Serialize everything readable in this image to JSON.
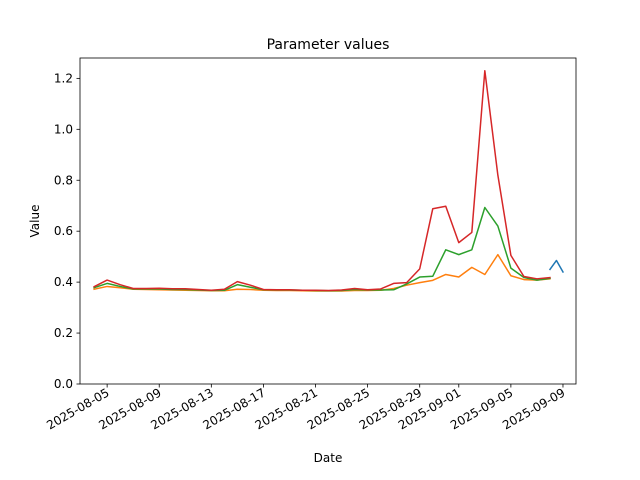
{
  "chart_data": {
    "type": "line",
    "title": "Parameter values",
    "xlabel": "Date",
    "ylabel": "Value",
    "xlim": [
      "2025-08-02T22:00",
      "2025-09-10T00:00"
    ],
    "ylim": [
      0,
      1.28
    ],
    "grid": false,
    "legend": "none",
    "x_ticks": [
      "2025-08-05",
      "2025-08-09",
      "2025-08-13",
      "2025-08-17",
      "2025-08-21",
      "2025-08-25",
      "2025-08-29",
      "2025-09-01",
      "2025-09-05",
      "2025-09-09"
    ],
    "y_ticks": [
      0.0,
      0.2,
      0.4,
      0.6,
      0.8,
      1.0,
      1.2
    ],
    "y_tick_labels": [
      "0.0",
      "0.2",
      "0.4",
      "0.6",
      "0.8",
      "1.0",
      "1.2"
    ],
    "series": [
      {
        "color": "#1f77b4",
        "points": [
          [
            "2025-09-08",
            0.45
          ],
          [
            "2025-09-08T12:00",
            0.485
          ],
          [
            "2025-09-09",
            0.44
          ]
        ]
      },
      {
        "color": "#ff7f0e",
        "points": [
          [
            "2025-08-04",
            0.372
          ],
          [
            "2025-08-05",
            0.383
          ],
          [
            "2025-08-06",
            0.378
          ],
          [
            "2025-08-07",
            0.372
          ],
          [
            "2025-08-08",
            0.371
          ],
          [
            "2025-08-09",
            0.37
          ],
          [
            "2025-08-10",
            0.369
          ],
          [
            "2025-08-11",
            0.368
          ],
          [
            "2025-08-12",
            0.367
          ],
          [
            "2025-08-13",
            0.366
          ],
          [
            "2025-08-14",
            0.366
          ],
          [
            "2025-08-15",
            0.372
          ],
          [
            "2025-08-16",
            0.371
          ],
          [
            "2025-08-17",
            0.368
          ],
          [
            "2025-08-18",
            0.367
          ],
          [
            "2025-08-19",
            0.367
          ],
          [
            "2025-08-20",
            0.366
          ],
          [
            "2025-08-21",
            0.365
          ],
          [
            "2025-08-22",
            0.365
          ],
          [
            "2025-08-23",
            0.365
          ],
          [
            "2025-08-24",
            0.367
          ],
          [
            "2025-08-25",
            0.367
          ],
          [
            "2025-08-26",
            0.368
          ],
          [
            "2025-08-27",
            0.375
          ],
          [
            "2025-08-28",
            0.388
          ],
          [
            "2025-08-29",
            0.398
          ],
          [
            "2025-08-30",
            0.407
          ],
          [
            "2025-08-31",
            0.43
          ],
          [
            "2025-09-01",
            0.42
          ],
          [
            "2025-09-02",
            0.458
          ],
          [
            "2025-09-03",
            0.43
          ],
          [
            "2025-09-04",
            0.508
          ],
          [
            "2025-09-05",
            0.425
          ],
          [
            "2025-09-06",
            0.41
          ],
          [
            "2025-09-07",
            0.408
          ],
          [
            "2025-09-08",
            0.413
          ]
        ]
      },
      {
        "color": "#2ca02c",
        "points": [
          [
            "2025-08-04",
            0.378
          ],
          [
            "2025-08-05",
            0.395
          ],
          [
            "2025-08-06",
            0.383
          ],
          [
            "2025-08-07",
            0.373
          ],
          [
            "2025-08-08",
            0.373
          ],
          [
            "2025-08-09",
            0.373
          ],
          [
            "2025-08-10",
            0.371
          ],
          [
            "2025-08-11",
            0.371
          ],
          [
            "2025-08-12",
            0.369
          ],
          [
            "2025-08-13",
            0.367
          ],
          [
            "2025-08-14",
            0.368
          ],
          [
            "2025-08-15",
            0.39
          ],
          [
            "2025-08-16",
            0.38
          ],
          [
            "2025-08-17",
            0.37
          ],
          [
            "2025-08-18",
            0.369
          ],
          [
            "2025-08-19",
            0.369
          ],
          [
            "2025-08-20",
            0.368
          ],
          [
            "2025-08-21",
            0.367
          ],
          [
            "2025-08-22",
            0.366
          ],
          [
            "2025-08-23",
            0.367
          ],
          [
            "2025-08-24",
            0.371
          ],
          [
            "2025-08-25",
            0.369
          ],
          [
            "2025-08-26",
            0.369
          ],
          [
            "2025-08-27",
            0.37
          ],
          [
            "2025-08-28",
            0.393
          ],
          [
            "2025-08-29",
            0.42
          ],
          [
            "2025-08-30",
            0.423
          ],
          [
            "2025-08-31",
            0.527
          ],
          [
            "2025-09-01",
            0.508
          ],
          [
            "2025-09-02",
            0.527
          ],
          [
            "2025-09-03",
            0.693
          ],
          [
            "2025-09-04",
            0.62
          ],
          [
            "2025-09-05",
            0.455
          ],
          [
            "2025-09-06",
            0.418
          ],
          [
            "2025-09-07",
            0.408
          ],
          [
            "2025-09-08",
            0.415
          ]
        ]
      },
      {
        "color": "#d62728",
        "points": [
          [
            "2025-08-04",
            0.382
          ],
          [
            "2025-08-05",
            0.408
          ],
          [
            "2025-08-06",
            0.39
          ],
          [
            "2025-08-07",
            0.375
          ],
          [
            "2025-08-08",
            0.375
          ],
          [
            "2025-08-09",
            0.376
          ],
          [
            "2025-08-10",
            0.374
          ],
          [
            "2025-08-11",
            0.374
          ],
          [
            "2025-08-12",
            0.371
          ],
          [
            "2025-08-13",
            0.368
          ],
          [
            "2025-08-14",
            0.372
          ],
          [
            "2025-08-15",
            0.402
          ],
          [
            "2025-08-16",
            0.388
          ],
          [
            "2025-08-17",
            0.371
          ],
          [
            "2025-08-18",
            0.37
          ],
          [
            "2025-08-19",
            0.37
          ],
          [
            "2025-08-20",
            0.368
          ],
          [
            "2025-08-21",
            0.368
          ],
          [
            "2025-08-22",
            0.367
          ],
          [
            "2025-08-23",
            0.369
          ],
          [
            "2025-08-24",
            0.375
          ],
          [
            "2025-08-25",
            0.37
          ],
          [
            "2025-08-26",
            0.373
          ],
          [
            "2025-08-27",
            0.395
          ],
          [
            "2025-08-28",
            0.398
          ],
          [
            "2025-08-29",
            0.452
          ],
          [
            "2025-08-30",
            0.688
          ],
          [
            "2025-08-31",
            0.698
          ],
          [
            "2025-09-01",
            0.555
          ],
          [
            "2025-09-02",
            0.595
          ],
          [
            "2025-09-03",
            1.23
          ],
          [
            "2025-09-04",
            0.82
          ],
          [
            "2025-09-05",
            0.505
          ],
          [
            "2025-09-06",
            0.422
          ],
          [
            "2025-09-07",
            0.413
          ],
          [
            "2025-09-08",
            0.418
          ]
        ]
      }
    ]
  }
}
